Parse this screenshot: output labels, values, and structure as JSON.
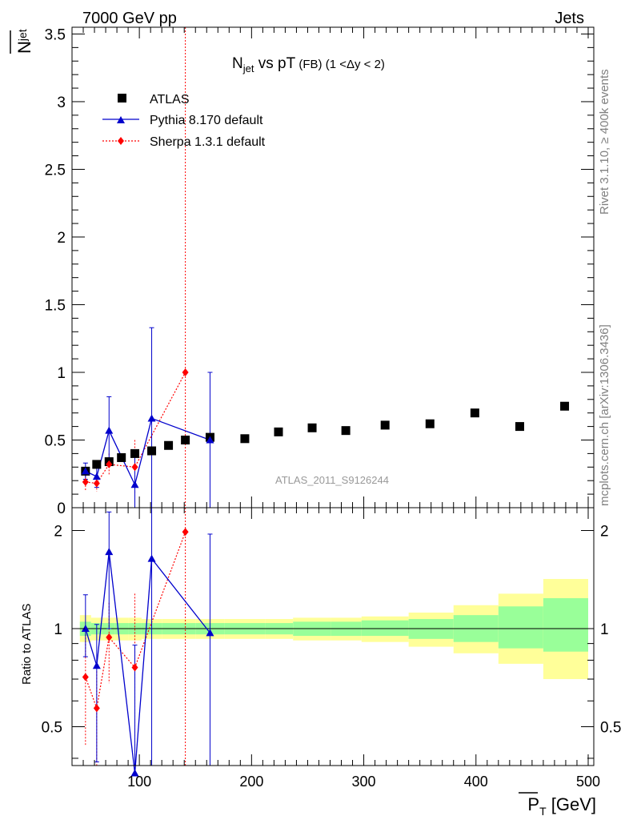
{
  "header": {
    "left": "7000 GeV pp",
    "right": "Jets"
  },
  "plot_title": {
    "main": "N",
    "main_sub": "jet",
    "mid": " vs pT",
    "small": " (FB)",
    "range": " (1 <Δy < 2)"
  },
  "side_texts": {
    "rivet": "Rivet 3.1.10, ≥ 400k events",
    "mcplots": "mcplots.cern.ch [arXiv:1306.3436]"
  },
  "watermark": "ATLAS_2011_S9126244",
  "axes": {
    "main_ylabel_base": "N",
    "main_ylabel_sub": "jet",
    "ratio_ylabel": "Ratio to ATLAS",
    "xlabel_base": "P",
    "xlabel_sub": "T",
    "xlabel_unit": " [GeV]"
  },
  "colors": {
    "data": "#000000",
    "pythia": "#0000cc",
    "sherpa": "#ff0000",
    "band_outer": "#ffff99",
    "band_inner": "#99ff99"
  },
  "chart_data": {
    "type": "scatter",
    "xlim": [
      40,
      505
    ],
    "main_ylim": [
      0,
      3.55
    ],
    "ratio_ylim": [
      0.38,
      2.35
    ],
    "ratio_scale": "log",
    "legend_position": "top-left",
    "grid": false,
    "x_ticks": [
      "100",
      "200",
      "300",
      "400",
      "500"
    ],
    "main_y_ticks": [
      "0",
      "0.5",
      "1",
      "1.5",
      "2",
      "2.5",
      "3",
      "3.5"
    ],
    "ratio_y_ticks": [
      "0.5",
      "1",
      "2"
    ],
    "series": [
      {
        "name": "ATLAS",
        "marker": "square",
        "x": [
          52,
          62,
          73,
          84,
          96,
          111,
          126,
          141,
          163,
          194,
          224,
          254,
          284,
          319,
          359,
          399,
          439,
          479
        ],
        "y": [
          0.27,
          0.32,
          0.34,
          0.37,
          0.4,
          0.42,
          0.46,
          0.5,
          0.52,
          0.51,
          0.56,
          0.59,
          0.57,
          0.61,
          0.62,
          0.7,
          0.6,
          0.75
        ]
      },
      {
        "name": "Pythia 8.170 default",
        "marker": "triangle",
        "line": "solid",
        "x": [
          52,
          62,
          73,
          96,
          111,
          163
        ],
        "y": [
          0.27,
          0.23,
          0.57,
          0.17,
          0.66,
          0.5
        ],
        "err": [
          0.06,
          0.08,
          0.25,
          0.25,
          0.67,
          0.5
        ]
      },
      {
        "name": "Sherpa 1.3.1 default",
        "marker": "diamond",
        "line": "dotted",
        "x": [
          52,
          62,
          73,
          96,
          141
        ],
        "y": [
          0.19,
          0.18,
          0.32,
          0.3,
          1.0
        ],
        "err": [
          0.07,
          0.06,
          0.08,
          0.2,
          1.0
        ]
      }
    ],
    "ratio_series": [
      {
        "name": "Pythia 8.170 default",
        "x": [
          52,
          62,
          73,
          96,
          111,
          163
        ],
        "y": [
          1.0,
          0.77,
          1.72,
          0.36,
          1.64,
          0.97
        ],
        "err_low": [
          0.82,
          0.39,
          1.0,
          0.1,
          0.1,
          0.1
        ],
        "err_high": [
          1.27,
          1.03,
          2.28,
          0.89,
          3.0,
          1.95
        ]
      },
      {
        "name": "Sherpa 1.3.1 default",
        "x": [
          52,
          62,
          73,
          96,
          141
        ],
        "y": [
          0.71,
          0.57,
          0.94,
          0.76,
          1.98
        ],
        "err_low": [
          0.44,
          0.38,
          0.68,
          0.38,
          0.1
        ],
        "err_high": [
          0.96,
          0.74,
          1.2,
          1.28,
          3.0
        ]
      }
    ],
    "ratio_bands": {
      "x_edges": [
        47,
        57,
        67,
        78,
        90,
        102,
        120,
        132,
        150,
        176,
        212,
        237,
        271,
        298,
        340,
        380,
        420,
        460,
        500
      ],
      "outer_low": [
        0.91,
        0.92,
        0.92,
        0.92,
        0.92,
        0.93,
        0.93,
        0.93,
        0.93,
        0.93,
        0.93,
        0.92,
        0.92,
        0.91,
        0.88,
        0.84,
        0.78,
        0.7
      ],
      "outer_high": [
        1.1,
        1.08,
        1.08,
        1.08,
        1.08,
        1.07,
        1.07,
        1.07,
        1.07,
        1.07,
        1.07,
        1.08,
        1.08,
        1.09,
        1.12,
        1.18,
        1.28,
        1.42
      ],
      "inner_low": [
        0.95,
        0.96,
        0.96,
        0.96,
        0.96,
        0.96,
        0.96,
        0.96,
        0.96,
        0.96,
        0.96,
        0.95,
        0.95,
        0.95,
        0.93,
        0.91,
        0.87,
        0.85
      ],
      "inner_high": [
        1.05,
        1.04,
        1.04,
        1.04,
        1.04,
        1.04,
        1.04,
        1.04,
        1.04,
        1.04,
        1.04,
        1.05,
        1.05,
        1.06,
        1.07,
        1.1,
        1.17,
        1.24
      ]
    }
  }
}
